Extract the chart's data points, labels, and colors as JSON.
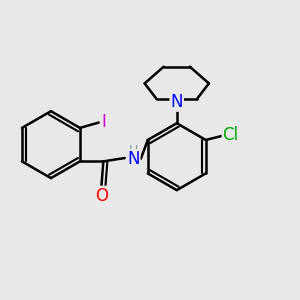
{
  "background_color": "#e8e8e8",
  "atom_colors": {
    "C": "#000000",
    "H": "#7a9a9a",
    "N": "#0000ff",
    "O": "#ff0000",
    "I": "#cc00cc",
    "Cl": "#00aa00"
  },
  "bond_color": "#000000",
  "bond_width": 1.8,
  "figsize": [
    3.0,
    3.0
  ],
  "dpi": 100
}
